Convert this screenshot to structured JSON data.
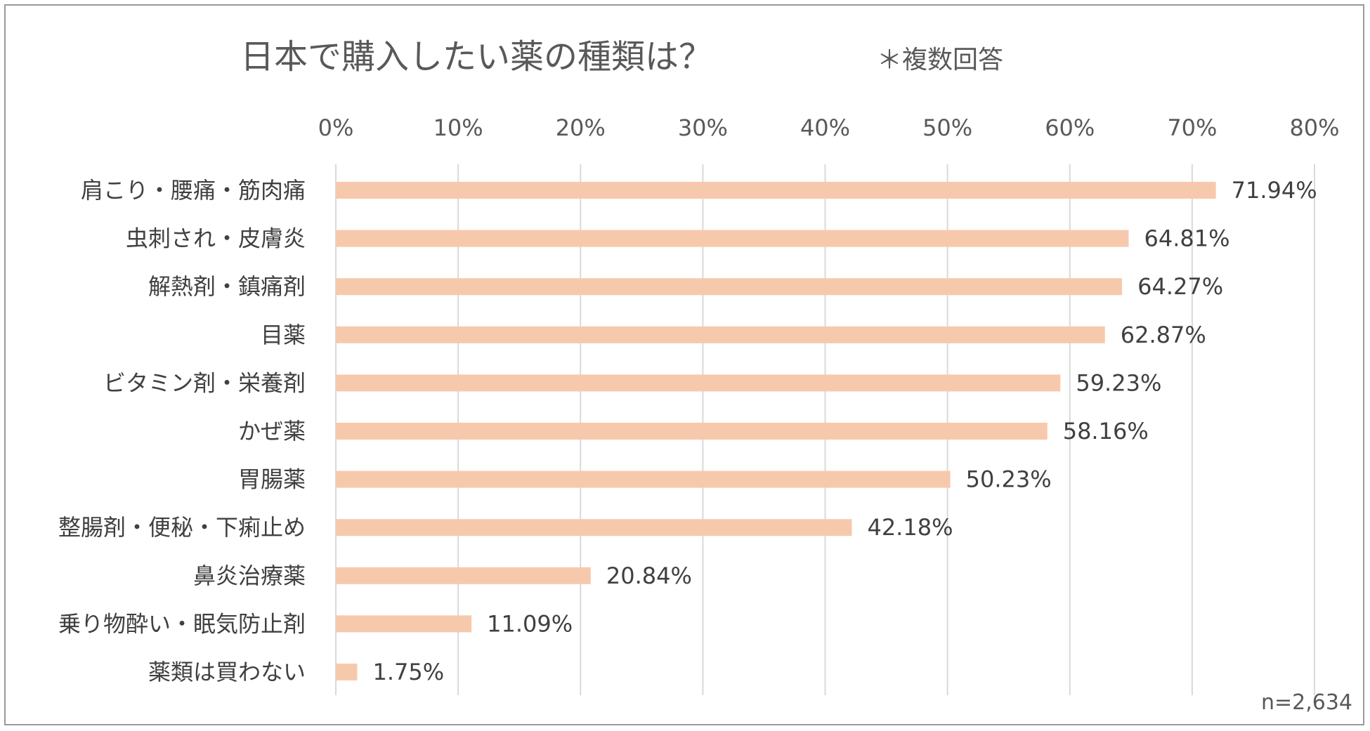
{
  "chart_data": {
    "type": "bar",
    "orientation": "horizontal",
    "title": "日本で購入したい薬の種類は？",
    "subtitle": "＊複数回答",
    "categories": [
      "肩こり・腰痛・筋肉痛",
      "虫刺され・皮膚炎",
      "解熱剤・鎮痛剤",
      "目薬",
      "ビタミン剤・栄養剤",
      "かぜ薬",
      "胃腸薬",
      "整腸剤・便秘・下痢止め",
      "鼻炎治療薬",
      "乗り物酔い・眠気防止剤",
      "薬類は買わない"
    ],
    "values": [
      71.94,
      64.81,
      64.27,
      62.87,
      59.23,
      58.16,
      50.23,
      42.18,
      20.84,
      11.09,
      1.75
    ],
    "value_labels": [
      "71.94%",
      "64.81%",
      "64.27%",
      "62.87%",
      "59.23%",
      "58.16%",
      "50.23%",
      "42.18%",
      "20.84%",
      "11.09%",
      "1.75%"
    ],
    "xlim": [
      0,
      80
    ],
    "x_ticks": [
      0,
      10,
      20,
      30,
      40,
      50,
      60,
      70,
      80
    ],
    "x_tick_labels": [
      "0%",
      "10%",
      "20%",
      "30%",
      "40%",
      "50%",
      "60%",
      "70%",
      "80%"
    ],
    "xaxis_position": "top",
    "grid": true,
    "legend": "none",
    "bar_color": "#f7c9ac",
    "grid_color": "#d9d9d9",
    "note": "n=2,634"
  }
}
